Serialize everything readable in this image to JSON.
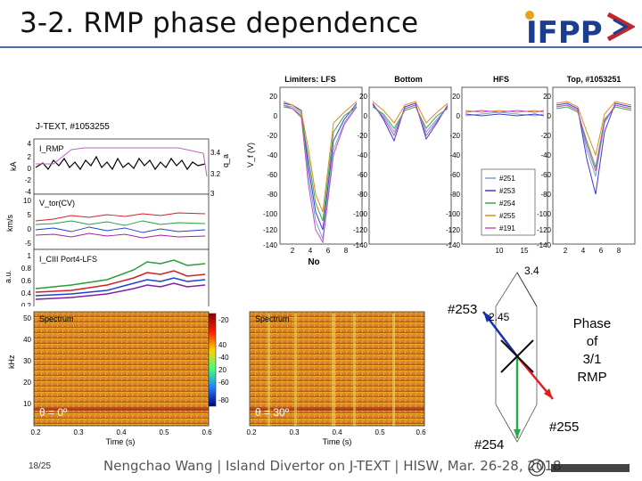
{
  "slide": {
    "title": "3-2. RMP phase dependence",
    "page_number": "18/25",
    "footer": "Nengchao Wang | Island Divertor on J-TEXT | HISW, Mar. 26-28, 2018",
    "logo_text": "IFPP"
  },
  "timetrace_fig": {
    "title": "J-TEXT, #1053255",
    "panels": [
      {
        "label": "I_RMP",
        "ylabel": "kA",
        "yticks": [
          "4",
          "2",
          "0",
          "-2",
          "-4"
        ],
        "right_label": "q_a",
        "right_ticks": [
          "3.4",
          "3.2",
          "3"
        ]
      },
      {
        "label": "V_tor(CV)",
        "ylabel": "km/s",
        "yticks": [
          "10",
          "5",
          "0",
          "-5"
        ]
      },
      {
        "label": "I_CIII Port4-LFS",
        "ylabel": "a.u.",
        "yticks": [
          "1",
          "0.8",
          "0.6",
          "0.4",
          "0.2"
        ]
      }
    ]
  },
  "spectrum_fig": {
    "panels": [
      {
        "label": "Spectrum",
        "theta": "θ = 0º",
        "yticks": [
          "50",
          "40",
          "30",
          "20",
          "10"
        ],
        "xticks": [
          "0.2",
          "0.3",
          "0.4",
          "0.5",
          "0.6"
        ],
        "xlabel": "Time (s)",
        "ylabel": "kHz"
      },
      {
        "label": "Spectrum",
        "theta": "θ = 30º",
        "xticks": [
          "0.2",
          "0.3",
          "0.4",
          "0.5",
          "0.6"
        ],
        "xlabel": "Time (s)"
      }
    ],
    "colorbar_ticks": [
      "-20",
      "-40",
      "-60",
      "-80"
    ],
    "colorbar_ticks_left": [
      "40",
      "20"
    ]
  },
  "vf_fig": {
    "panel_titles": [
      "Limiters: LFS",
      "Bottom",
      "HFS",
      "Top, #1053251"
    ],
    "ylabel": "V_f (V)",
    "yticks": [
      "20",
      "0",
      "-20",
      "-40",
      "-60",
      "-80",
      "-100",
      "-120",
      "-140"
    ],
    "xlabel": "No",
    "xticks_first": [
      "2",
      "4",
      "6",
      "8"
    ],
    "xticks_third": [
      "10",
      "15"
    ],
    "xticks_last": [
      "2",
      "4",
      "6",
      "8"
    ],
    "legend": [
      "#251",
      "#253",
      "#254",
      "#255",
      "#191"
    ],
    "legend_colors": [
      "#7aa0d8",
      "#3b3bd0",
      "#3aa84a",
      "#e08a20",
      "#c050c0"
    ]
  },
  "phase_diagram": {
    "label_top": "3.4",
    "label_253": "#253",
    "label_245": "2.45",
    "label_254": "#254",
    "label_255": "#255",
    "caption": "Phase of 3/1 RMP"
  }
}
